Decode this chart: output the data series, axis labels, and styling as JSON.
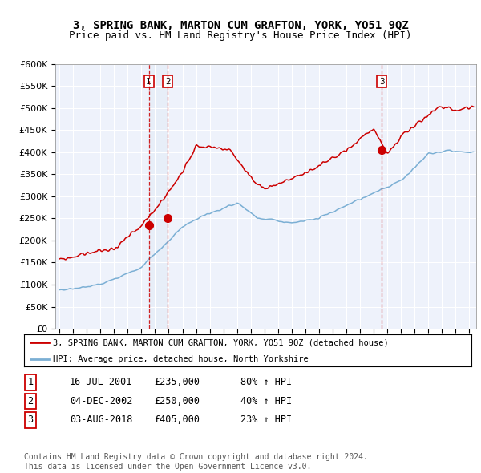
{
  "title": "3, SPRING BANK, MARTON CUM GRAFTON, YORK, YO51 9QZ",
  "subtitle": "Price paid vs. HM Land Registry's House Price Index (HPI)",
  "ylim": [
    0,
    600000
  ],
  "yticks": [
    0,
    50000,
    100000,
    150000,
    200000,
    250000,
    300000,
    350000,
    400000,
    450000,
    500000,
    550000,
    600000
  ],
  "xlim_start": 1994.7,
  "xlim_end": 2025.5,
  "sale_dates": [
    2001.54,
    2002.92,
    2018.58
  ],
  "sale_prices": [
    235000,
    250000,
    405000
  ],
  "sale_labels": [
    "1",
    "2",
    "3"
  ],
  "legend_entries": [
    "3, SPRING BANK, MARTON CUM GRAFTON, YORK, YO51 9QZ (detached house)",
    "HPI: Average price, detached house, North Yorkshire"
  ],
  "table_data": [
    [
      "1",
      "16-JUL-2001",
      "£235,000",
      "80% ↑ HPI"
    ],
    [
      "2",
      "04-DEC-2002",
      "£250,000",
      "40% ↑ HPI"
    ],
    [
      "3",
      "03-AUG-2018",
      "£405,000",
      "23% ↑ HPI"
    ]
  ],
  "footer": "Contains HM Land Registry data © Crown copyright and database right 2024.\nThis data is licensed under the Open Government Licence v3.0.",
  "red_color": "#cc0000",
  "blue_color": "#7bafd4",
  "shade_color": "#dce8f5",
  "dashed_color": "#cc0000",
  "background_plot": "#eef2fb",
  "grid_color": "#ffffff",
  "title_fontsize": 10,
  "subtitle_fontsize": 9,
  "tick_fontsize": 8
}
